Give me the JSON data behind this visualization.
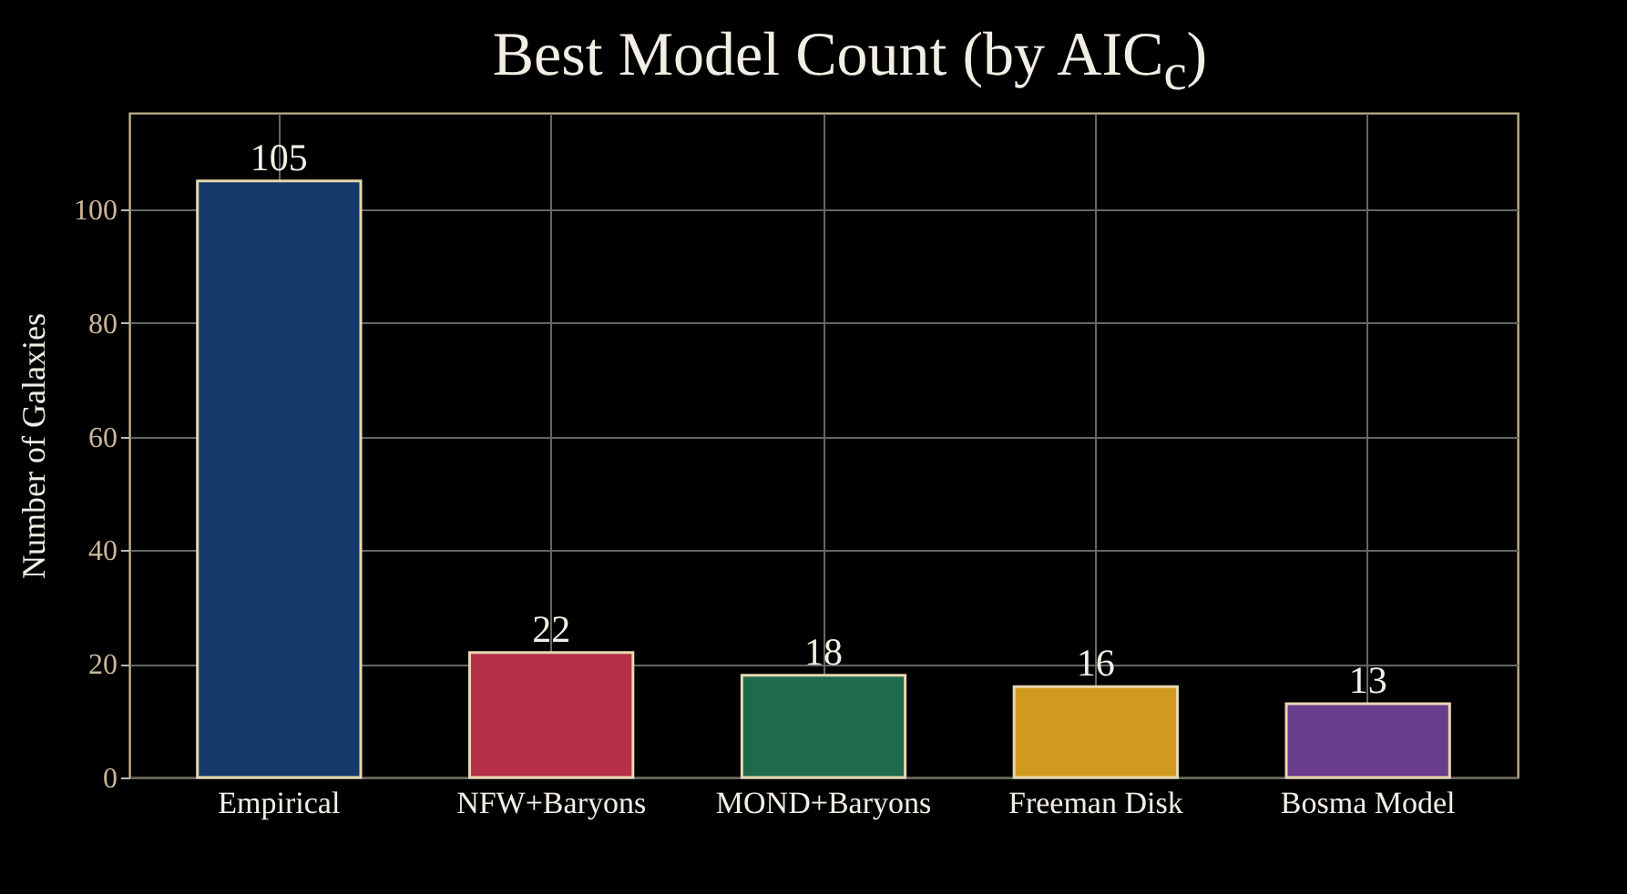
{
  "chart_data": {
    "type": "bar",
    "title": "Best Model Count (by AIC$_{c}$)",
    "ylabel": "Number of Galaxies",
    "categories": [
      "Empirical",
      "NFW+Baryons",
      "MOND+Baryons",
      "Freeman Disk",
      "Bosma Model"
    ],
    "values": [
      105,
      22,
      18,
      16,
      13
    ],
    "colors": [
      "#143a6c",
      "#b52f4b",
      "#1e6a4c",
      "#d09a1e",
      "#6a3c8c"
    ],
    "ylim": [
      0,
      117
    ],
    "yticks": [
      0,
      20,
      40,
      60,
      80,
      100
    ],
    "grid": true,
    "data_labels": true
  }
}
